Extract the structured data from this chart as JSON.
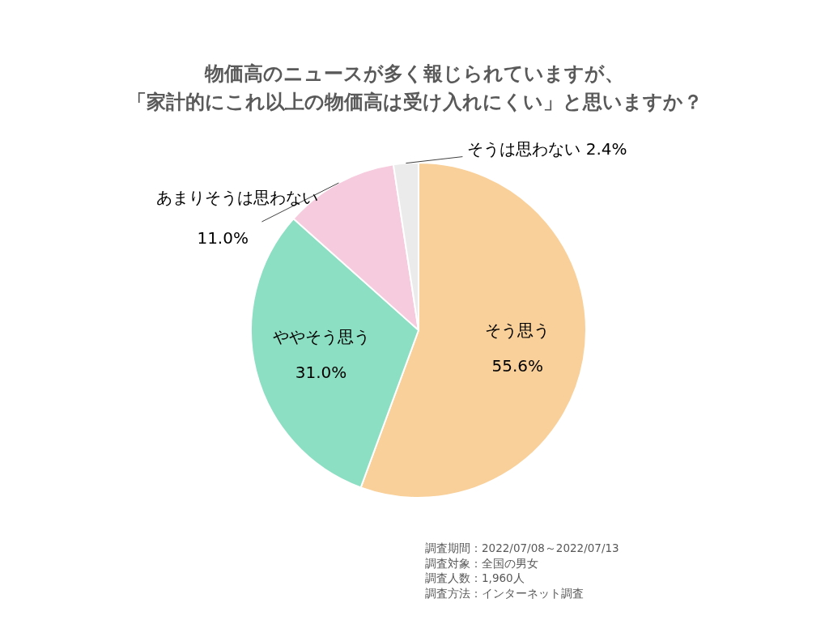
{
  "chart_data": {
    "type": "pie",
    "title": "物価高のニュースが多く報じられていますが、「家計的にこれ以上の物価高は受け入れにくい」と思いますか？",
    "categories": [
      "そう思う",
      "ややそう思う",
      "あまりそうは思わない",
      "そうは思わない"
    ],
    "values": [
      55.6,
      31.0,
      11.0,
      2.4
    ],
    "value_labels": [
      "55.6%",
      "31.0%",
      "11.0%",
      "2.4%"
    ],
    "colors": [
      "#f9d09a",
      "#8ddfc4",
      "#f6cbdd",
      "#ebebeb"
    ],
    "legend": false,
    "annotations": [
      "調査期間：2022/07/08～2022/07/13",
      "調査対象：全国の男女",
      "調査人数：1,960人",
      "調査方法：インターネット調査"
    ]
  }
}
